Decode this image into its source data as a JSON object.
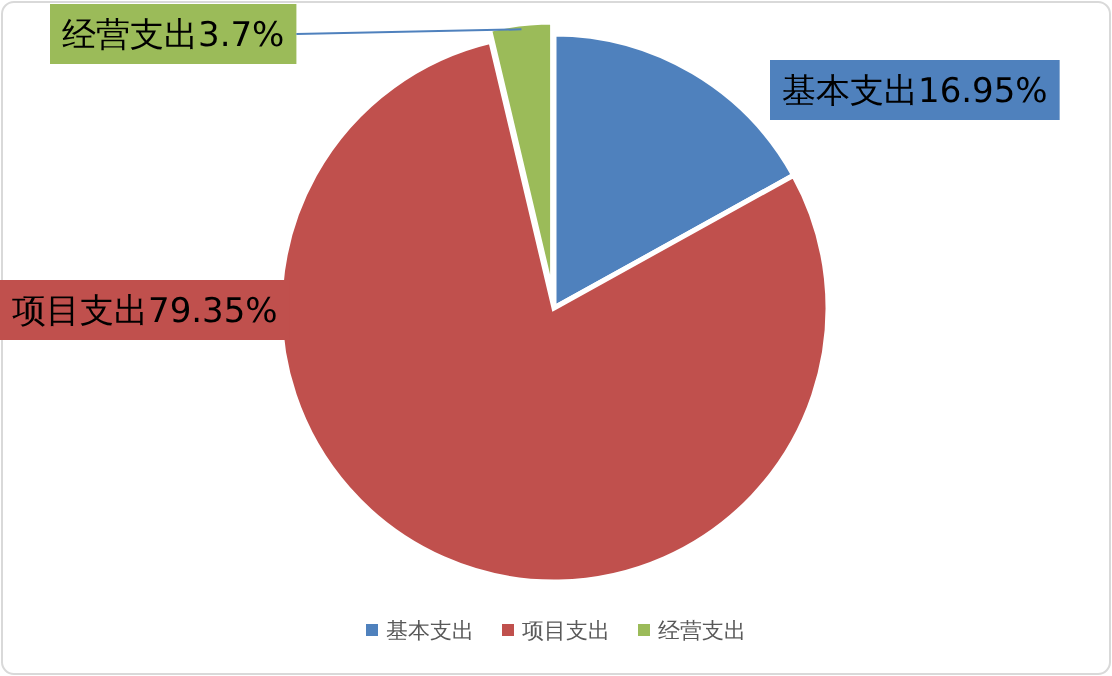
{
  "chart_data": {
    "type": "pie",
    "categories": [
      "基本支出",
      "项目支出",
      "经营支出"
    ],
    "values": [
      16.95,
      79.35,
      3.7
    ],
    "colors": [
      "#4f81bd",
      "#c0504d",
      "#9bbb59"
    ],
    "value_labels": [
      "16.95%",
      "79.35%",
      "3.7%"
    ],
    "legend": "bottom"
  }
}
